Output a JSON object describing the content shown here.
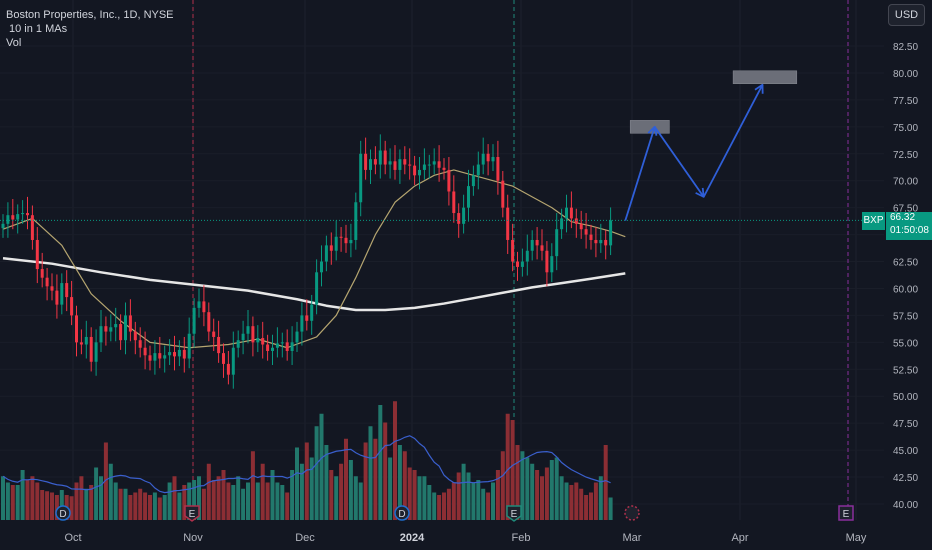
{
  "legend": {
    "title": "Boston Properties, Inc., 1D, NYSE",
    "ma_label": "10 in 1 MAs",
    "vol_label": "Vol"
  },
  "currency": "USD",
  "last_price": {
    "symbol": "BXP",
    "price": "66.32",
    "countdown": "01:50:08"
  },
  "colors": {
    "background": "#131722",
    "up": "#089981",
    "down": "#f23645",
    "vol_up": "#22786c",
    "vol_down": "#8c2e34",
    "ma_short": "#b5a570",
    "ma_long": "#e6e6e6",
    "vol_ma": "#3a5fcd",
    "arrow": "#2f5fd8",
    "target_box": "#6b6e78",
    "earnings": "#b0304c",
    "dividend": "#1f6fd1"
  },
  "chart_data": {
    "type": "candlestick",
    "x_axis_labels": [
      "Oct",
      "Nov",
      "Dec",
      "2024",
      "Feb",
      "Mar",
      "Apr",
      "May"
    ],
    "y_axis_labels": [
      "82.50",
      "80.00",
      "77.50",
      "75.00",
      "72.50",
      "70.00",
      "67.50",
      "65.00",
      "62.50",
      "60.00",
      "57.50",
      "55.00",
      "52.50",
      "50.00",
      "47.50",
      "45.00",
      "42.50",
      "40.00"
    ],
    "y_range": [
      38.9,
      84.6
    ],
    "close": [
      66.0,
      66.8,
      66.4,
      66.9,
      67.0,
      66.8,
      64.5,
      61.8,
      61.0,
      60.2,
      59.8,
      58.5,
      60.5,
      59.2,
      57.5,
      55.0,
      54.8,
      55.5,
      53.2,
      55.0,
      56.5,
      56.0,
      56.4,
      56.7,
      55.2,
      57.5,
      56.0,
      55.2,
      54.5,
      53.8,
      53.3,
      54.0,
      53.5,
      53.8,
      54.1,
      53.7,
      54.3,
      53.5,
      55.8,
      58.2,
      58.8,
      57.8,
      56.0,
      55.5,
      54.0,
      53.0,
      52.0,
      54.5,
      55.2,
      55.8,
      56.5,
      55.0,
      55.4,
      54.8,
      54.2,
      54.5,
      54.9,
      55.0,
      54.2,
      55.0,
      56.0,
      57.5,
      57.0,
      58.5,
      61.5,
      62.5,
      64.0,
      63.5,
      64.8,
      64.7,
      64.2,
      64.5,
      68.0,
      72.5,
      71.0,
      72.0,
      71.5,
      72.8,
      71.5,
      71.8,
      71.0,
      72.0,
      71.5,
      71.4,
      70.5,
      71.0,
      71.5,
      71.5,
      71.8,
      71.2,
      71.0,
      69.0,
      67.0,
      66.0,
      67.5,
      69.5,
      70.5,
      71.5,
      72.5,
      71.8,
      72.2,
      70.0,
      67.5,
      64.5,
      62.5,
      62.0,
      62.5,
      63.5,
      64.5,
      64.0,
      63.5,
      61.5,
      63.0,
      65.5,
      66.5,
      67.5,
      66.5,
      66.0,
      65.5,
      65.0,
      64.5,
      64.2,
      64.5,
      64.0,
      66.32
    ],
    "ma_short_endpoints": [
      [
        0,
        65.5
      ],
      [
        6,
        66.5
      ],
      [
        12,
        64.0
      ],
      [
        18,
        59.5
      ],
      [
        24,
        57.0
      ],
      [
        30,
        55.0
      ],
      [
        38,
        54.5
      ],
      [
        46,
        54.8
      ],
      [
        52,
        55.3
      ],
      [
        58,
        54.5
      ],
      [
        64,
        55.5
      ],
      [
        68,
        57.5
      ],
      [
        72,
        61.0
      ],
      [
        76,
        65.0
      ],
      [
        80,
        68.0
      ],
      [
        84,
        69.5
      ],
      [
        88,
        70.5
      ],
      [
        92,
        71.0
      ],
      [
        96,
        70.5
      ],
      [
        100,
        70.0
      ],
      [
        104,
        69.5
      ],
      [
        108,
        68.5
      ],
      [
        112,
        67.5
      ],
      [
        116,
        66.2
      ],
      [
        120,
        65.8
      ],
      [
        124,
        65.3
      ],
      [
        127,
        64.8
      ]
    ],
    "ma_long_endpoints": [
      [
        0,
        62.8
      ],
      [
        10,
        62.3
      ],
      [
        20,
        61.5
      ],
      [
        30,
        60.8
      ],
      [
        40,
        60.3
      ],
      [
        50,
        59.8
      ],
      [
        60,
        59.0
      ],
      [
        66,
        58.4
      ],
      [
        72,
        58.0
      ],
      [
        78,
        58.0
      ],
      [
        84,
        58.2
      ],
      [
        90,
        58.6
      ],
      [
        96,
        59.1
      ],
      [
        102,
        59.6
      ],
      [
        108,
        60.1
      ],
      [
        114,
        60.5
      ],
      [
        120,
        60.9
      ],
      [
        127,
        61.4
      ]
    ],
    "volume_relative": [
      0.35,
      0.3,
      0.28,
      0.28,
      0.4,
      0.32,
      0.35,
      0.3,
      0.24,
      0.23,
      0.22,
      0.2,
      0.24,
      0.2,
      0.19,
      0.3,
      0.35,
      0.25,
      0.28,
      0.42,
      0.35,
      0.62,
      0.45,
      0.3,
      0.25,
      0.25,
      0.2,
      0.22,
      0.25,
      0.22,
      0.2,
      0.22,
      0.18,
      0.2,
      0.3,
      0.35,
      0.22,
      0.28,
      0.3,
      0.32,
      0.35,
      0.25,
      0.45,
      0.32,
      0.35,
      0.4,
      0.3,
      0.28,
      0.35,
      0.25,
      0.3,
      0.55,
      0.3,
      0.45,
      0.3,
      0.4,
      0.3,
      0.28,
      0.22,
      0.4,
      0.58,
      0.45,
      0.62,
      0.5,
      0.75,
      0.85,
      0.6,
      0.4,
      0.35,
      0.45,
      0.65,
      0.48,
      0.35,
      0.3,
      0.62,
      0.75,
      0.65,
      0.92,
      0.78,
      0.5,
      0.95,
      0.6,
      0.55,
      0.42,
      0.4,
      0.35,
      0.35,
      0.28,
      0.22,
      0.2,
      0.22,
      0.25,
      0.3,
      0.38,
      0.45,
      0.38,
      0.3,
      0.32,
      0.25,
      0.22,
      0.3,
      0.4,
      0.55,
      0.85,
      0.8,
      0.6,
      0.55,
      0.5,
      0.45,
      0.4,
      0.35,
      0.42,
      0.48,
      0.5,
      0.35,
      0.3,
      0.28,
      0.3,
      0.25,
      0.2,
      0.22,
      0.3,
      0.35,
      0.6,
      0.18
    ],
    "volume_ma_relative": 0.28,
    "projection_points": [
      [
        127,
        66.3
      ],
      [
        133,
        75.0
      ],
      [
        143,
        68.5
      ],
      [
        155,
        78.9
      ]
    ],
    "target_zones": [
      {
        "x_start": 128,
        "x_end": 136,
        "y_low": 74.4,
        "y_high": 75.6
      },
      {
        "x_start": 149,
        "x_end": 162,
        "y_low": 79.0,
        "y_high": 80.2
      }
    ],
    "last_price": 66.32
  }
}
